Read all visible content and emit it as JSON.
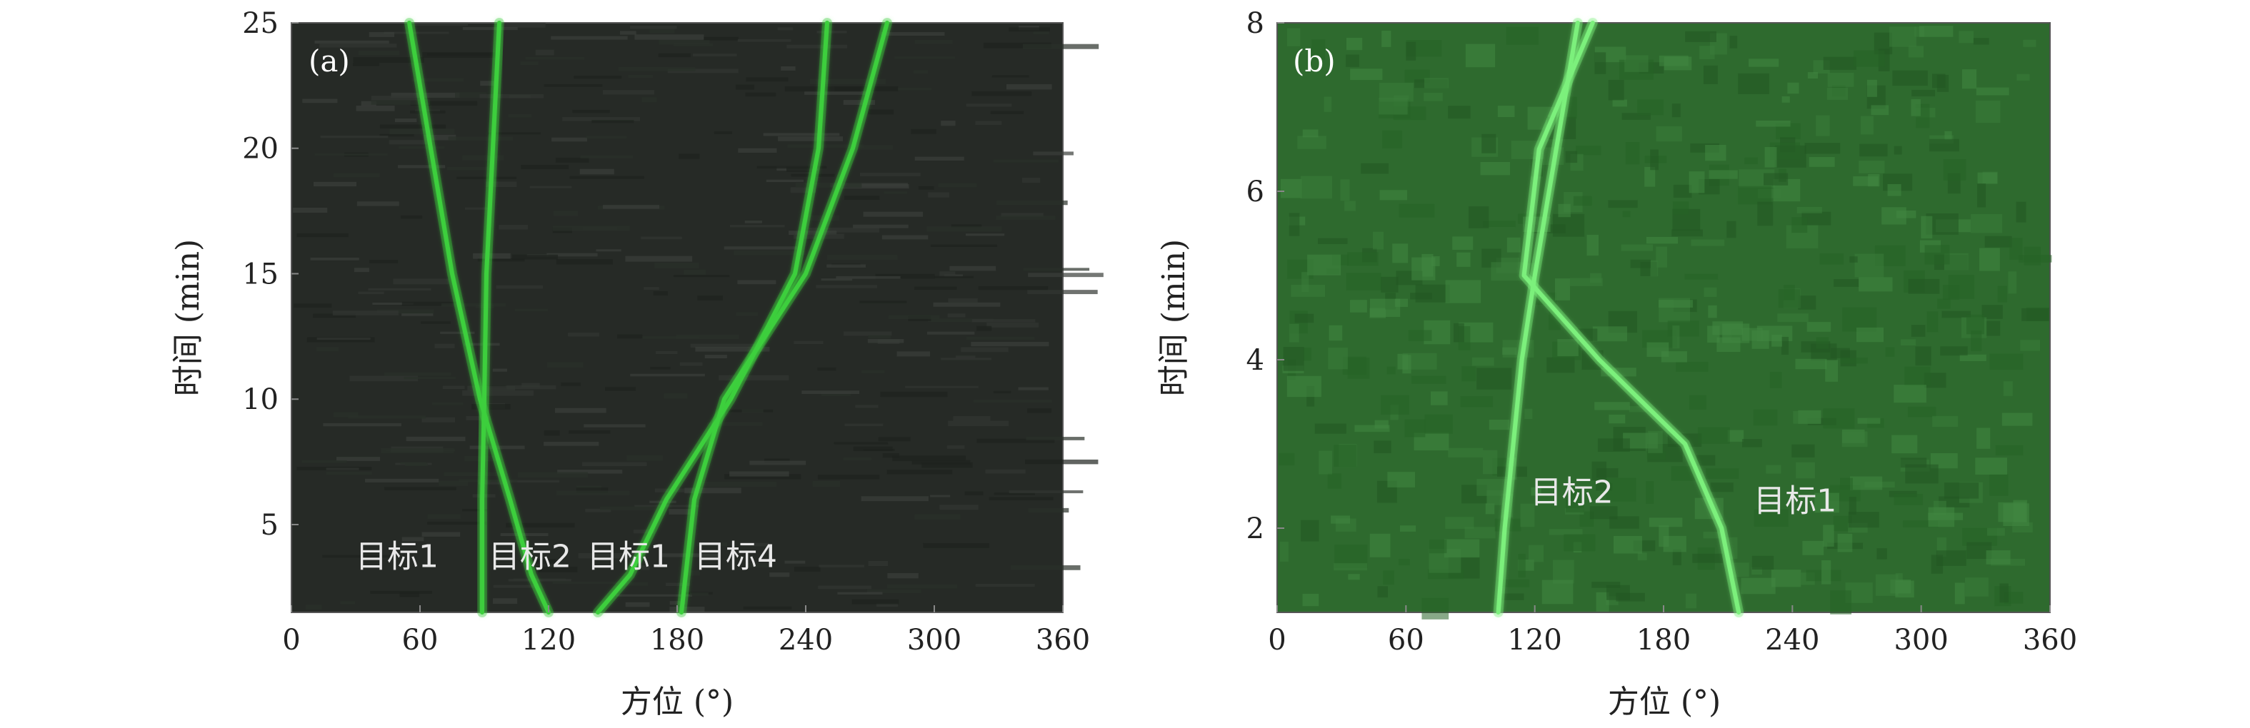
{
  "chart_data": [
    {
      "type": "line",
      "panel_label": "(a)",
      "xlabel": "方位 (°)",
      "ylabel": "时间 (min)",
      "xlim": [
        0,
        360
      ],
      "ylim": [
        1.5,
        25
      ],
      "xticks": [
        0,
        60,
        120,
        180,
        240,
        300,
        360
      ],
      "yticks": [
        5,
        10,
        15,
        20,
        25
      ],
      "grid": false,
      "background": "#262a26",
      "track_color": "#3ccf3c",
      "series": [
        {
          "x": [
            55,
            65,
            75,
            88,
            102,
            112,
            120
          ],
          "y": [
            25,
            20,
            15,
            10,
            6,
            3,
            1.5
          ]
        },
        {
          "x": [
            97,
            94,
            91,
            90,
            89,
            89,
            89
          ],
          "y": [
            25,
            20,
            15,
            10,
            6,
            3,
            1.5
          ]
        },
        {
          "x": [
            250,
            246,
            235,
            205,
            175,
            158,
            143
          ],
          "y": [
            25,
            20,
            15,
            10,
            6,
            3,
            1.5
          ]
        },
        {
          "x": [
            278,
            262,
            240,
            202,
            188,
            184,
            182
          ],
          "y": [
            25,
            20,
            15,
            10,
            6,
            3,
            1.5
          ]
        }
      ],
      "annotations": [
        {
          "text": "目标1",
          "x": 30,
          "y": 3.3
        },
        {
          "text": "目标2",
          "x": 92,
          "y": 3.3
        },
        {
          "text": "目标1",
          "x": 138,
          "y": 3.3
        },
        {
          "text": "目标4",
          "x": 188,
          "y": 3.3
        }
      ]
    },
    {
      "type": "line",
      "panel_label": "(b)",
      "xlabel": "方位 (°)",
      "ylabel": "时间 (min)",
      "xlim": [
        0,
        360
      ],
      "ylim": [
        1,
        8
      ],
      "xticks": [
        0,
        60,
        120,
        180,
        240,
        300,
        360
      ],
      "yticks": [
        2,
        4,
        6,
        8
      ],
      "grid": false,
      "background": "#2e6a2e",
      "track_color": "#7cf07c",
      "series": [
        {
          "x": [
            103,
            106,
            110,
            114,
            120,
            130,
            140
          ],
          "y": [
            1,
            2,
            3,
            4,
            5,
            6.5,
            8
          ]
        },
        {
          "x": [
            215,
            207,
            190,
            150,
            115,
            122,
            147
          ],
          "y": [
            1,
            2,
            3,
            4,
            5,
            6.5,
            8
          ]
        }
      ],
      "annotations": [
        {
          "text": "目标2",
          "x": 118,
          "y": 2.3
        },
        {
          "text": "目标1",
          "x": 222,
          "y": 2.2
        }
      ]
    }
  ]
}
